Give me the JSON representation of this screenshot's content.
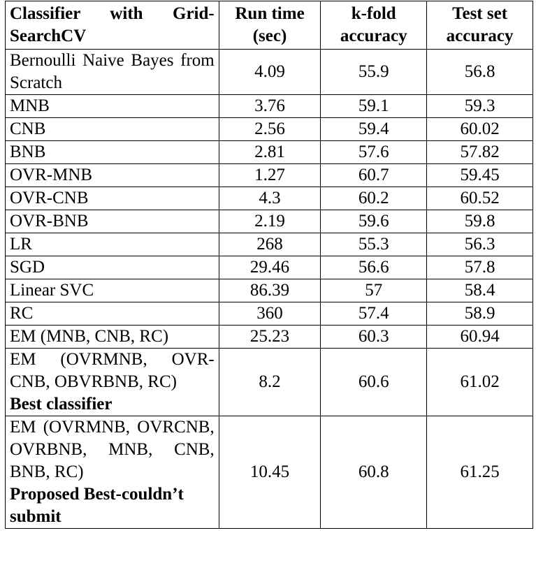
{
  "table": {
    "headers": [
      "Classifier with Grid-SearchCV",
      "Run time (sec)",
      "k-fold accuracy",
      "Test set accuracy"
    ],
    "rows": [
      {
        "classifier": "Bernoulli Naive Bayes from Scratch",
        "note": "",
        "run_time": "4.09",
        "kfold": "55.9",
        "test": "56.8"
      },
      {
        "classifier": "MNB",
        "note": "",
        "run_time": "3.76",
        "kfold": "59.1",
        "test": "59.3"
      },
      {
        "classifier": "CNB",
        "note": "",
        "run_time": "2.56",
        "kfold": "59.4",
        "test": "60.02"
      },
      {
        "classifier": "BNB",
        "note": "",
        "run_time": "2.81",
        "kfold": "57.6",
        "test": "57.82"
      },
      {
        "classifier": "OVR-MNB",
        "note": "",
        "run_time": "1.27",
        "kfold": "60.7",
        "test": "59.45"
      },
      {
        "classifier": "OVR-CNB",
        "note": "",
        "run_time": "4.3",
        "kfold": "60.2",
        "test": "60.52"
      },
      {
        "classifier": "OVR-BNB",
        "note": "",
        "run_time": "2.19",
        "kfold": "59.6",
        "test": "59.8"
      },
      {
        "classifier": "LR",
        "note": "",
        "run_time": "268",
        "kfold": "55.3",
        "test": "56.3"
      },
      {
        "classifier": "SGD",
        "note": "",
        "run_time": "29.46",
        "kfold": "56.6",
        "test": "57.8"
      },
      {
        "classifier": "Linear SVC",
        "note": "",
        "run_time": "86.39",
        "kfold": "57",
        "test": "58.4"
      },
      {
        "classifier": "RC",
        "note": "",
        "run_time": "360",
        "kfold": "57.4",
        "test": "58.9"
      },
      {
        "classifier": "EM (MNB, CNB, RC)",
        "note": "",
        "run_time": "25.23",
        "kfold": "60.3",
        "test": "60.94"
      },
      {
        "classifier": "EM (OVRMNB, OVR-CNB, OBVRBNB, RC)",
        "note": "Best classifier",
        "run_time": "8.2",
        "kfold": "60.6",
        "test": "61.02"
      },
      {
        "classifier": "EM (OVRMNB, OVRCNB, OVRBNB, MNB, CNB, BNB, RC)",
        "note": "Proposed Best-couldn’t submit",
        "run_time": "10.45",
        "kfold": "60.8",
        "test": "61.25"
      }
    ]
  }
}
